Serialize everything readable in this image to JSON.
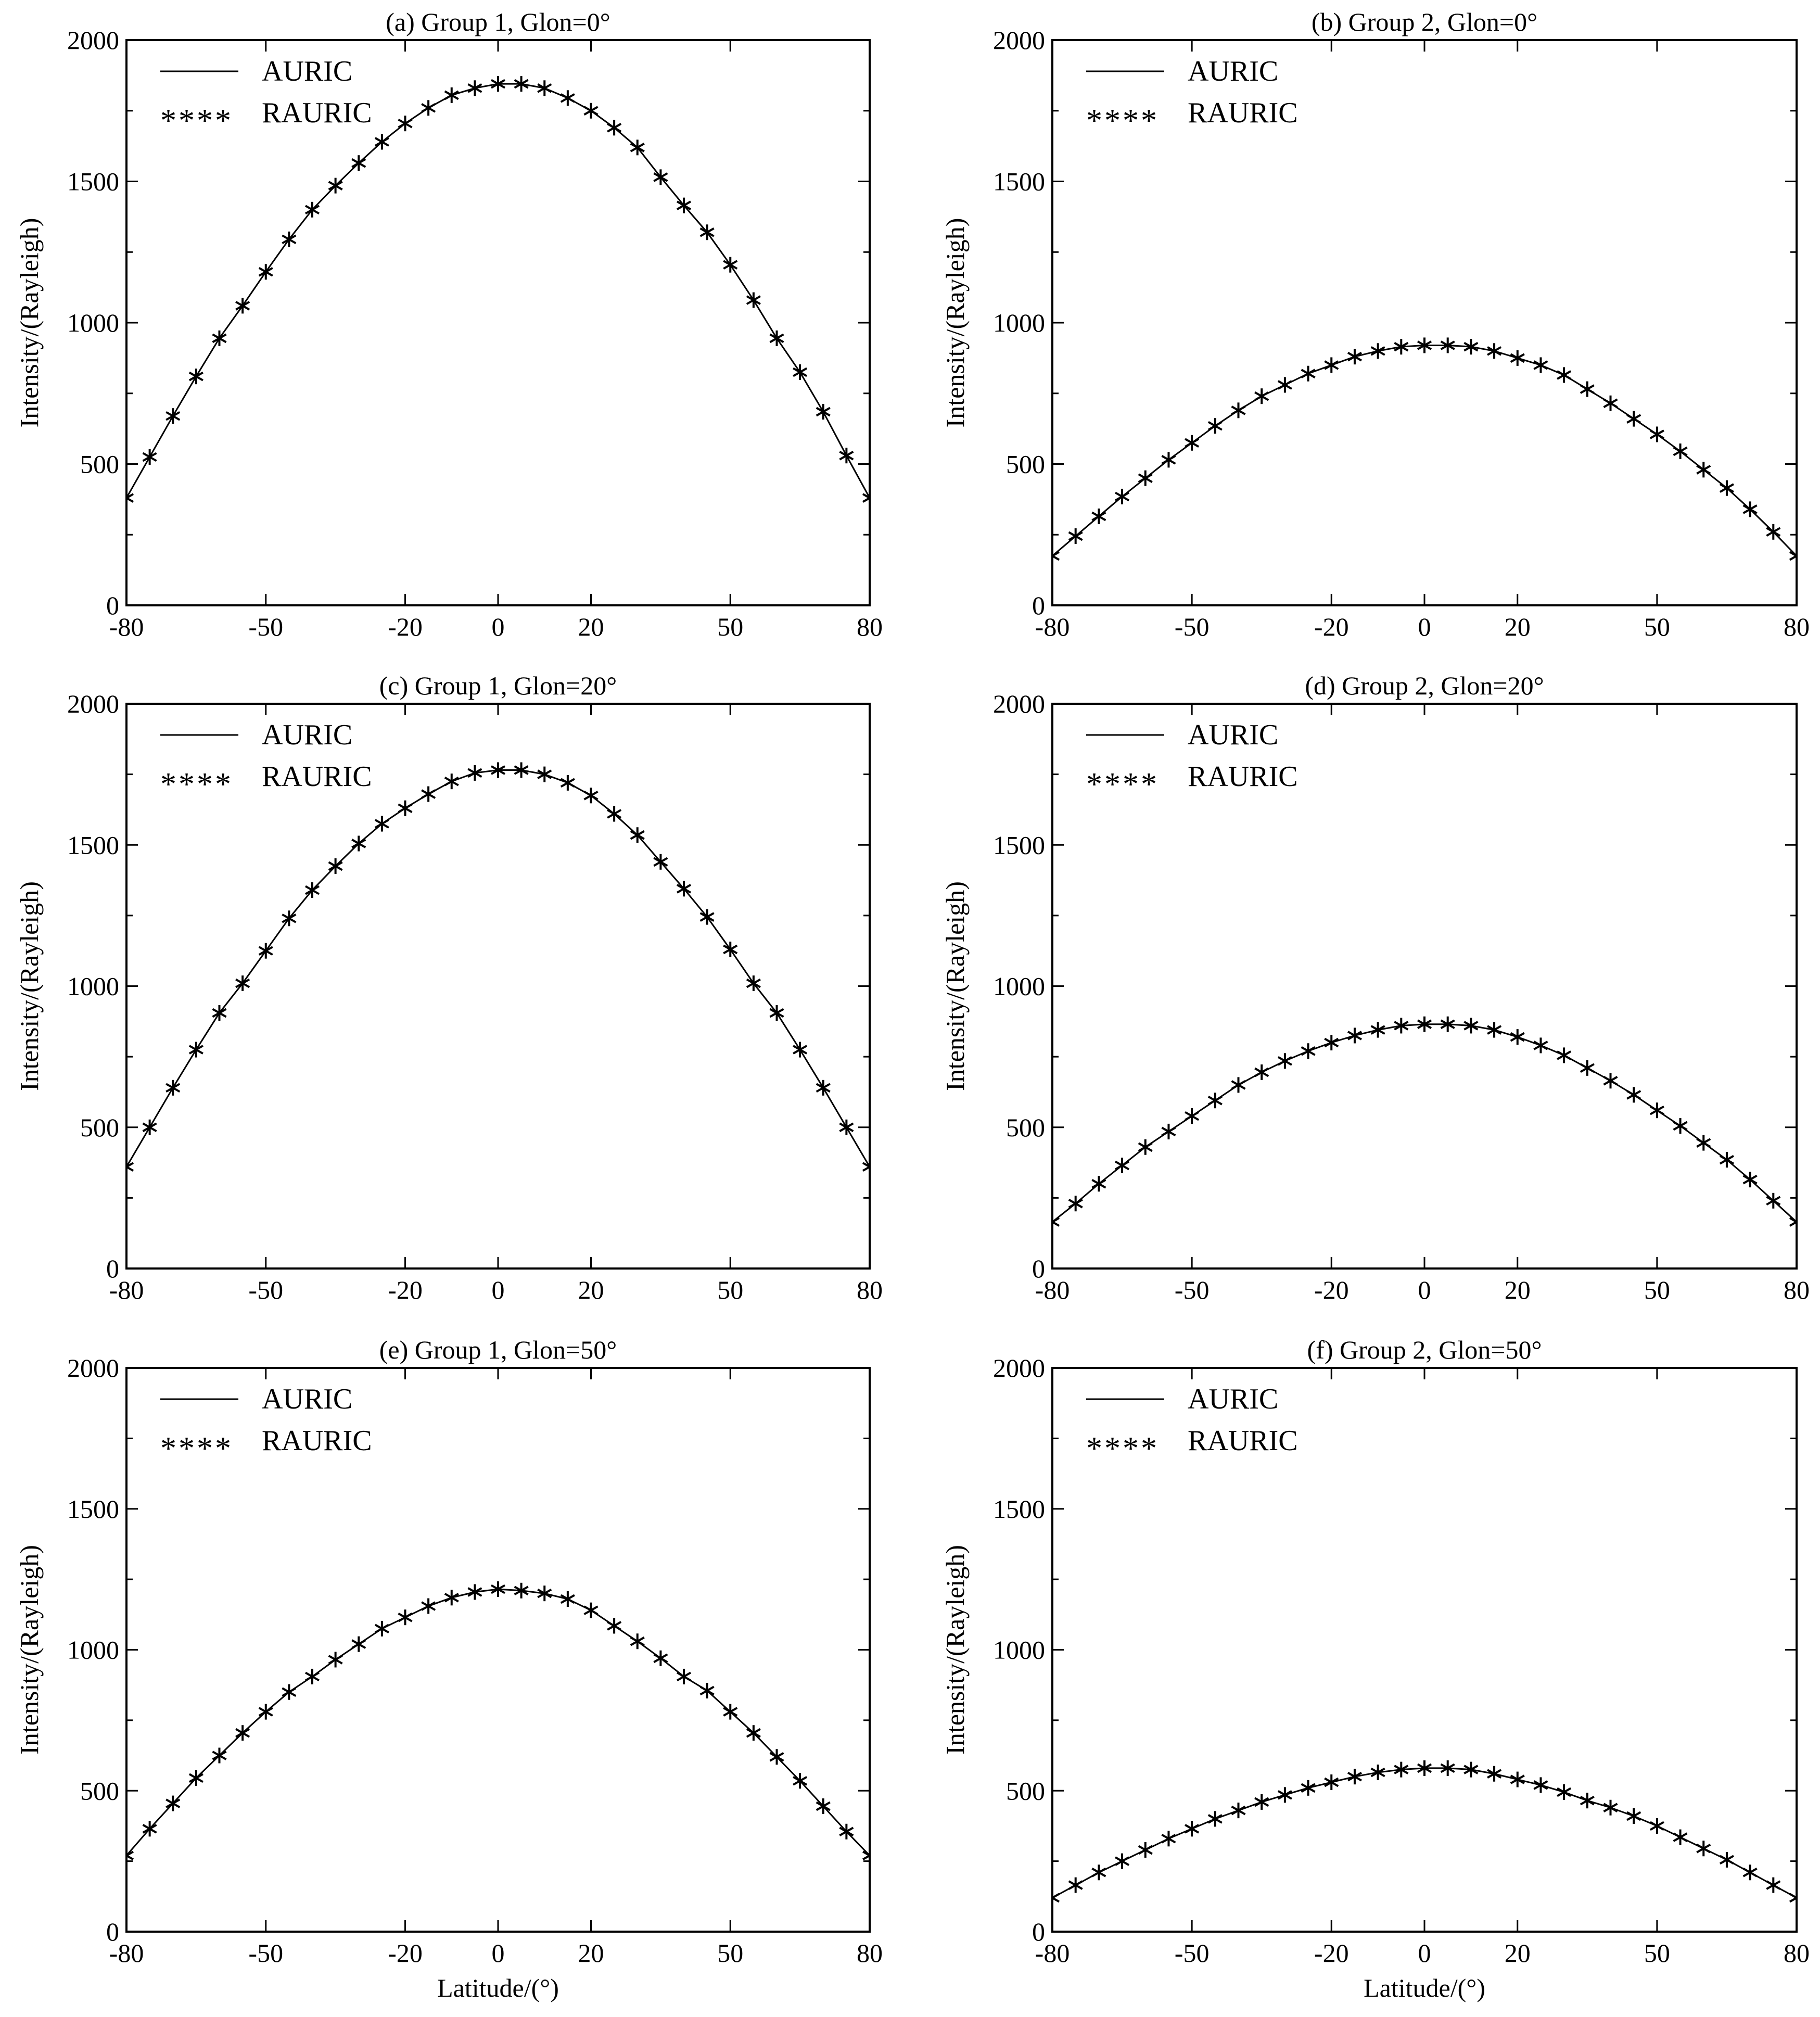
{
  "figure": {
    "ylabel": "Intensity/(Rayleigh)",
    "xlabel": "Latitude/(°)",
    "legend": {
      "line_label": "AURIC",
      "marker_label": "RAURIC",
      "marker_sample": "****"
    }
  },
  "chart_data": [
    {
      "type": "line",
      "title": "(a) Group 1, Glon=0°",
      "xlabel": "",
      "ylabel": "Intensity/(Rayleigh)",
      "xlim": [
        -80,
        80
      ],
      "ylim": [
        0,
        2000
      ],
      "xticks": [
        -80,
        -50,
        -20,
        0,
        20,
        50,
        80
      ],
      "xtick_labels": [
        "-80",
        "-50",
        "-20",
        "0",
        "20",
        "50",
        "80"
      ],
      "yticks": [
        0,
        500,
        1000,
        1500,
        2000
      ],
      "ytick_labels": [
        "0",
        "500",
        "1000",
        "1500",
        "2000"
      ],
      "legend": "top-left",
      "grid": false,
      "series": [
        {
          "name": "AURIC",
          "style": "line",
          "x": [
            -80,
            -75,
            -70,
            -65,
            -60,
            -55,
            -50,
            -45,
            -40,
            -35,
            -30,
            -25,
            -20,
            -15,
            -10,
            -5,
            0,
            5,
            10,
            15,
            20,
            25,
            30,
            35,
            40,
            45,
            50,
            55,
            60,
            65,
            70,
            75,
            80
          ],
          "y": [
            380,
            525,
            670,
            810,
            945,
            1060,
            1180,
            1295,
            1400,
            1485,
            1565,
            1640,
            1705,
            1760,
            1805,
            1830,
            1845,
            1845,
            1830,
            1795,
            1750,
            1690,
            1620,
            1515,
            1415,
            1320,
            1205,
            1080,
            945,
            825,
            685,
            530,
            380
          ]
        },
        {
          "name": "RAURIC",
          "style": "asterisk",
          "x": [
            -80,
            -75,
            -70,
            -65,
            -60,
            -55,
            -50,
            -45,
            -40,
            -35,
            -30,
            -25,
            -20,
            -15,
            -10,
            -5,
            0,
            5,
            10,
            15,
            20,
            25,
            30,
            35,
            40,
            45,
            50,
            55,
            60,
            65,
            70,
            75,
            80
          ],
          "y": [
            380,
            525,
            670,
            810,
            945,
            1060,
            1180,
            1295,
            1400,
            1485,
            1565,
            1640,
            1705,
            1760,
            1805,
            1830,
            1845,
            1845,
            1830,
            1795,
            1750,
            1690,
            1620,
            1515,
            1415,
            1320,
            1205,
            1080,
            945,
            825,
            685,
            530,
            380
          ]
        }
      ]
    },
    {
      "type": "line",
      "title": "(b) Group 2, Glon=0°",
      "xlabel": "",
      "ylabel": "Intensity/(Rayleigh)",
      "xlim": [
        -80,
        80
      ],
      "ylim": [
        0,
        2000
      ],
      "xticks": [
        -80,
        -50,
        -20,
        0,
        20,
        50,
        80
      ],
      "xtick_labels": [
        "-80",
        "-50",
        "-20",
        "0",
        "20",
        "50",
        "80"
      ],
      "yticks": [
        0,
        500,
        1000,
        1500,
        2000
      ],
      "ytick_labels": [
        "0",
        "500",
        "1000",
        "1500",
        "2000"
      ],
      "legend": "top-left",
      "grid": false,
      "series": [
        {
          "name": "AURIC",
          "style": "line",
          "x": [
            -80,
            -75,
            -70,
            -65,
            -60,
            -55,
            -50,
            -45,
            -40,
            -35,
            -30,
            -25,
            -20,
            -15,
            -10,
            -5,
            0,
            5,
            10,
            15,
            20,
            25,
            30,
            35,
            40,
            45,
            50,
            55,
            60,
            65,
            70,
            75,
            80
          ],
          "y": [
            175,
            245,
            315,
            385,
            450,
            515,
            575,
            635,
            690,
            740,
            780,
            820,
            850,
            880,
            900,
            915,
            920,
            920,
            915,
            900,
            875,
            850,
            815,
            765,
            715,
            660,
            605,
            545,
            480,
            415,
            340,
            260,
            175
          ]
        },
        {
          "name": "RAURIC",
          "style": "asterisk",
          "x": [
            -80,
            -75,
            -70,
            -65,
            -60,
            -55,
            -50,
            -45,
            -40,
            -35,
            -30,
            -25,
            -20,
            -15,
            -10,
            -5,
            0,
            5,
            10,
            15,
            20,
            25,
            30,
            35,
            40,
            45,
            50,
            55,
            60,
            65,
            70,
            75,
            80
          ],
          "y": [
            175,
            245,
            315,
            385,
            450,
            515,
            575,
            635,
            690,
            740,
            780,
            820,
            850,
            880,
            900,
            915,
            920,
            920,
            915,
            900,
            875,
            850,
            815,
            765,
            715,
            660,
            605,
            545,
            480,
            415,
            340,
            260,
            175
          ]
        }
      ]
    },
    {
      "type": "line",
      "title": "(c) Group 1, Glon=20°",
      "xlabel": "",
      "ylabel": "Intensity/(Rayleigh)",
      "xlim": [
        -80,
        80
      ],
      "ylim": [
        0,
        2000
      ],
      "xticks": [
        -80,
        -50,
        -20,
        0,
        20,
        50,
        80
      ],
      "xtick_labels": [
        "-80",
        "-50",
        "-20",
        "0",
        "20",
        "50",
        "80"
      ],
      "yticks": [
        0,
        500,
        1000,
        1500,
        2000
      ],
      "ytick_labels": [
        "0",
        "500",
        "1000",
        "1500",
        "2000"
      ],
      "legend": "top-left",
      "grid": false,
      "series": [
        {
          "name": "AURIC",
          "style": "line",
          "x": [
            -80,
            -75,
            -70,
            -65,
            -60,
            -55,
            -50,
            -45,
            -40,
            -35,
            -30,
            -25,
            -20,
            -15,
            -10,
            -5,
            0,
            5,
            10,
            15,
            20,
            25,
            30,
            35,
            40,
            45,
            50,
            55,
            60,
            65,
            70,
            75,
            80
          ],
          "y": [
            360,
            500,
            640,
            775,
            905,
            1010,
            1125,
            1240,
            1340,
            1425,
            1505,
            1575,
            1630,
            1680,
            1725,
            1755,
            1765,
            1765,
            1750,
            1720,
            1675,
            1610,
            1535,
            1440,
            1345,
            1245,
            1130,
            1010,
            905,
            775,
            640,
            500,
            360
          ]
        },
        {
          "name": "RAURIC",
          "style": "asterisk",
          "x": [
            -80,
            -75,
            -70,
            -65,
            -60,
            -55,
            -50,
            -45,
            -40,
            -35,
            -30,
            -25,
            -20,
            -15,
            -10,
            -5,
            0,
            5,
            10,
            15,
            20,
            25,
            30,
            35,
            40,
            45,
            50,
            55,
            60,
            65,
            70,
            75,
            80
          ],
          "y": [
            360,
            500,
            640,
            775,
            905,
            1010,
            1125,
            1240,
            1340,
            1425,
            1505,
            1575,
            1630,
            1680,
            1725,
            1755,
            1765,
            1765,
            1750,
            1720,
            1675,
            1610,
            1535,
            1440,
            1345,
            1245,
            1130,
            1010,
            905,
            775,
            640,
            500,
            360
          ]
        }
      ]
    },
    {
      "type": "line",
      "title": "(d) Group 2, Glon=20°",
      "xlabel": "",
      "ylabel": "Intensity/(Rayleigh)",
      "xlim": [
        -80,
        80
      ],
      "ylim": [
        0,
        2000
      ],
      "xticks": [
        -80,
        -50,
        -20,
        0,
        20,
        50,
        80
      ],
      "xtick_labels": [
        "-80",
        "-50",
        "-20",
        "0",
        "20",
        "50",
        "80"
      ],
      "yticks": [
        0,
        500,
        1000,
        1500,
        2000
      ],
      "ytick_labels": [
        "0",
        "500",
        "1000",
        "1500",
        "2000"
      ],
      "legend": "top-left",
      "grid": false,
      "series": [
        {
          "name": "AURIC",
          "style": "line",
          "x": [
            -80,
            -75,
            -70,
            -65,
            -60,
            -55,
            -50,
            -45,
            -40,
            -35,
            -30,
            -25,
            -20,
            -15,
            -10,
            -5,
            0,
            5,
            10,
            15,
            20,
            25,
            30,
            35,
            40,
            45,
            50,
            55,
            60,
            65,
            70,
            75,
            80
          ],
          "y": [
            165,
            230,
            300,
            365,
            430,
            485,
            540,
            595,
            650,
            695,
            735,
            770,
            800,
            825,
            845,
            860,
            865,
            865,
            860,
            845,
            820,
            790,
            755,
            710,
            665,
            615,
            560,
            505,
            445,
            385,
            315,
            240,
            165
          ]
        },
        {
          "name": "RAURIC",
          "style": "asterisk",
          "x": [
            -80,
            -75,
            -70,
            -65,
            -60,
            -55,
            -50,
            -45,
            -40,
            -35,
            -30,
            -25,
            -20,
            -15,
            -10,
            -5,
            0,
            5,
            10,
            15,
            20,
            25,
            30,
            35,
            40,
            45,
            50,
            55,
            60,
            65,
            70,
            75,
            80
          ],
          "y": [
            165,
            230,
            300,
            365,
            430,
            485,
            540,
            595,
            650,
            695,
            735,
            770,
            800,
            825,
            845,
            860,
            865,
            865,
            860,
            845,
            820,
            790,
            755,
            710,
            665,
            615,
            560,
            505,
            445,
            385,
            315,
            240,
            165
          ]
        }
      ]
    },
    {
      "type": "line",
      "title": "(e) Group 1, Glon=50°",
      "xlabel": "Latitude/(°)",
      "ylabel": "Intensity/(Rayleigh)",
      "xlim": [
        -80,
        80
      ],
      "ylim": [
        0,
        2000
      ],
      "xticks": [
        -80,
        -50,
        -20,
        0,
        20,
        50,
        80
      ],
      "xtick_labels": [
        "-80",
        "-50",
        "-20",
        "0",
        "20",
        "50",
        "80"
      ],
      "yticks": [
        0,
        500,
        1000,
        1500,
        2000
      ],
      "ytick_labels": [
        "0",
        "500",
        "1000",
        "1500",
        "2000"
      ],
      "legend": "top-left",
      "grid": false,
      "series": [
        {
          "name": "AURIC",
          "style": "line",
          "x": [
            -80,
            -75,
            -70,
            -65,
            -60,
            -55,
            -50,
            -45,
            -40,
            -35,
            -30,
            -25,
            -20,
            -15,
            -10,
            -5,
            0,
            5,
            10,
            15,
            20,
            25,
            30,
            35,
            40,
            45,
            50,
            55,
            60,
            65,
            70,
            75,
            80
          ],
          "y": [
            270,
            365,
            455,
            545,
            625,
            705,
            780,
            850,
            905,
            965,
            1020,
            1075,
            1115,
            1155,
            1185,
            1205,
            1215,
            1210,
            1200,
            1180,
            1140,
            1085,
            1030,
            970,
            905,
            855,
            780,
            705,
            620,
            535,
            445,
            355,
            270
          ]
        },
        {
          "name": "RAURIC",
          "style": "asterisk",
          "x": [
            -80,
            -75,
            -70,
            -65,
            -60,
            -55,
            -50,
            -45,
            -40,
            -35,
            -30,
            -25,
            -20,
            -15,
            -10,
            -5,
            0,
            5,
            10,
            15,
            20,
            25,
            30,
            35,
            40,
            45,
            50,
            55,
            60,
            65,
            70,
            75,
            80
          ],
          "y": [
            270,
            365,
            455,
            545,
            625,
            705,
            780,
            850,
            905,
            965,
            1020,
            1075,
            1115,
            1155,
            1185,
            1205,
            1215,
            1210,
            1200,
            1180,
            1140,
            1085,
            1030,
            970,
            905,
            855,
            780,
            705,
            620,
            535,
            445,
            355,
            270
          ]
        }
      ]
    },
    {
      "type": "line",
      "title": "(f) Group 2, Glon=50°",
      "xlabel": "Latitude/(°)",
      "ylabel": "Intensity/(Rayleigh)",
      "xlim": [
        -80,
        80
      ],
      "ylim": [
        0,
        2000
      ],
      "xticks": [
        -80,
        -50,
        -20,
        0,
        20,
        50,
        80
      ],
      "xtick_labels": [
        "-80",
        "-50",
        "-20",
        "0",
        "20",
        "50",
        "80"
      ],
      "yticks": [
        0,
        500,
        1000,
        1500,
        2000
      ],
      "ytick_labels": [
        "0",
        "500",
        "1000",
        "1500",
        "2000"
      ],
      "legend": "top-left",
      "grid": false,
      "series": [
        {
          "name": "AURIC",
          "style": "line",
          "x": [
            -80,
            -75,
            -70,
            -65,
            -60,
            -55,
            -50,
            -45,
            -40,
            -35,
            -30,
            -25,
            -20,
            -15,
            -10,
            -5,
            0,
            5,
            10,
            15,
            20,
            25,
            30,
            35,
            40,
            45,
            50,
            55,
            60,
            65,
            70,
            75,
            80
          ],
          "y": [
            120,
            165,
            210,
            250,
            290,
            330,
            365,
            400,
            430,
            460,
            485,
            510,
            530,
            550,
            565,
            575,
            580,
            580,
            575,
            560,
            540,
            520,
            495,
            465,
            440,
            410,
            375,
            335,
            295,
            255,
            210,
            165,
            120
          ]
        },
        {
          "name": "RAURIC",
          "style": "asterisk",
          "x": [
            -80,
            -75,
            -70,
            -65,
            -60,
            -55,
            -50,
            -45,
            -40,
            -35,
            -30,
            -25,
            -20,
            -15,
            -10,
            -5,
            0,
            5,
            10,
            15,
            20,
            25,
            30,
            35,
            40,
            45,
            50,
            55,
            60,
            65,
            70,
            75,
            80
          ],
          "y": [
            120,
            165,
            210,
            250,
            290,
            330,
            365,
            400,
            430,
            460,
            485,
            510,
            530,
            550,
            565,
            575,
            580,
            580,
            575,
            560,
            540,
            520,
            495,
            465,
            440,
            410,
            375,
            335,
            295,
            255,
            210,
            165,
            120
          ]
        }
      ]
    }
  ]
}
